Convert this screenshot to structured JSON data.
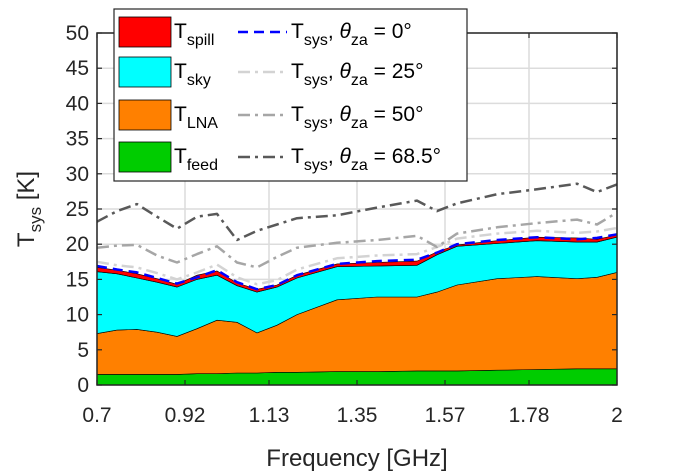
{
  "chart_data": {
    "type": "area",
    "xlabel": "Frequency [GHz]",
    "ylabel": "T_sys [K]",
    "xlim": [
      0.7,
      2.0
    ],
    "ylim": [
      0,
      50
    ],
    "xticks": [
      "0.7",
      "0.92",
      "1.13",
      "1.35",
      "1.57",
      "1.78",
      "2"
    ],
    "yticks": [
      "0",
      "5",
      "10",
      "15",
      "20",
      "25",
      "30",
      "35",
      "40",
      "45",
      "50"
    ],
    "grid": true,
    "legend_position": "top-left",
    "x": [
      0.7,
      0.75,
      0.8,
      0.85,
      0.9,
      0.95,
      1.0,
      1.05,
      1.1,
      1.15,
      1.2,
      1.3,
      1.4,
      1.5,
      1.55,
      1.6,
      1.7,
      1.8,
      1.9,
      1.95,
      2.0
    ],
    "stacked_series": [
      {
        "name": "T_feed",
        "name_main": "T",
        "name_sub": "feed",
        "color": "#00cc00",
        "values": [
          1.5,
          1.5,
          1.5,
          1.5,
          1.5,
          1.6,
          1.6,
          1.7,
          1.7,
          1.8,
          1.8,
          1.9,
          1.9,
          2.0,
          2.0,
          2.0,
          2.1,
          2.2,
          2.3,
          2.3,
          2.3
        ]
      },
      {
        "name": "T_LNA",
        "name_main": "T",
        "name_sub": "LNA",
        "color": "#ff8000",
        "values": [
          5.8,
          6.3,
          6.4,
          6.0,
          5.4,
          6.4,
          7.6,
          7.2,
          5.7,
          6.7,
          8.2,
          10.2,
          10.6,
          10.5,
          11.2,
          12.2,
          13.0,
          13.2,
          12.8,
          13.0,
          13.7
        ]
      },
      {
        "name": "T_sky",
        "name_main": "T",
        "name_sub": "sky",
        "color": "#00ffff",
        "values": [
          8.8,
          8.0,
          7.3,
          7.1,
          7.0,
          7.0,
          6.4,
          5.2,
          5.8,
          5.4,
          5.2,
          4.7,
          4.4,
          4.5,
          5.3,
          5.5,
          5.0,
          5.1,
          5.2,
          5.0,
          5.0
        ]
      },
      {
        "name": "T_spill",
        "name_main": "T",
        "name_sub": "spill",
        "color": "#ff0000",
        "values": [
          0.6,
          0.5,
          0.6,
          0.5,
          0.4,
          0.6,
          0.6,
          0.4,
          0.4,
          0.3,
          0.4,
          0.4,
          0.5,
          0.6,
          0.4,
          0.2,
          0.4,
          0.5,
          0.6,
          0.4,
          0.3
        ]
      }
    ],
    "line_series": [
      {
        "name": "T_sys, θ_za = 0°",
        "label_main": "T",
        "label_sub": "sys",
        "label_theta": "θ",
        "label_theta_sub": "za",
        "label_value": "= 0°",
        "color": "#0000ff",
        "dash": "dashed",
        "values": [
          16.9,
          16.4,
          16.0,
          15.2,
          14.4,
          15.3,
          16.3,
          14.6,
          13.6,
          14.2,
          15.6,
          17.2,
          17.6,
          17.8,
          18.8,
          20.0,
          20.6,
          21.0,
          20.7,
          20.9,
          21.4
        ]
      },
      {
        "name": "T_sys, θ_za = 25°",
        "label_main": "T",
        "label_sub": "sys",
        "label_theta": "θ",
        "label_theta_sub": "za",
        "label_value": "= 25°",
        "color": "#d3d3d3",
        "dash": "dashdot",
        "values": [
          17.5,
          17.0,
          16.7,
          15.9,
          15.0,
          16.0,
          17.1,
          15.3,
          14.3,
          14.9,
          16.4,
          18.0,
          18.4,
          18.6,
          19.6,
          20.8,
          21.5,
          21.9,
          21.6,
          21.8,
          22.3
        ]
      },
      {
        "name": "T_sys, θ_za = 50°",
        "label_main": "T",
        "label_sub": "sys",
        "label_theta": "θ",
        "label_theta_sub": "za",
        "label_value": "= 50°",
        "color": "#a6a6a6",
        "dash": "dashdot",
        "values": [
          19.5,
          19.8,
          19.9,
          18.4,
          17.4,
          18.6,
          19.7,
          17.4,
          16.7,
          18.2,
          19.5,
          20.2,
          20.6,
          21.2,
          19.6,
          21.5,
          22.4,
          23.0,
          23.5,
          22.8,
          24.5
        ]
      },
      {
        "name": "T_sys, θ_za = 68.5°",
        "label_main": "T",
        "label_sub": "sys",
        "label_theta": "θ",
        "label_theta_sub": "za",
        "label_value": "= 68.5°",
        "color": "#595959",
        "dash": "dashdot",
        "values": [
          23.2,
          24.7,
          25.7,
          23.9,
          22.2,
          23.9,
          24.3,
          20.6,
          21.9,
          22.8,
          23.7,
          24.1,
          25.2,
          26.2,
          24.7,
          25.8,
          27.1,
          27.8,
          28.6,
          27.4,
          28.5
        ]
      }
    ]
  }
}
